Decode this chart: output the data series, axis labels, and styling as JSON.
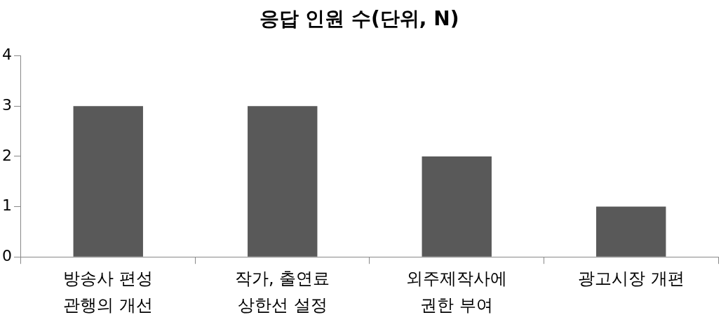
{
  "chart_data": {
    "type": "bar",
    "title": "응답 인원 수(단위, N)",
    "categories": [
      "방송사 편성 관행의 개선",
      "작가, 출연료 상한선 설정",
      "외주제작사에 권한 부여",
      "광고시장 개편"
    ],
    "values": [
      3,
      3,
      2,
      1
    ],
    "color": "#595959",
    "ylim": [
      0,
      4
    ],
    "yticks": [
      0,
      1,
      2,
      3,
      4
    ],
    "grid": false
  }
}
